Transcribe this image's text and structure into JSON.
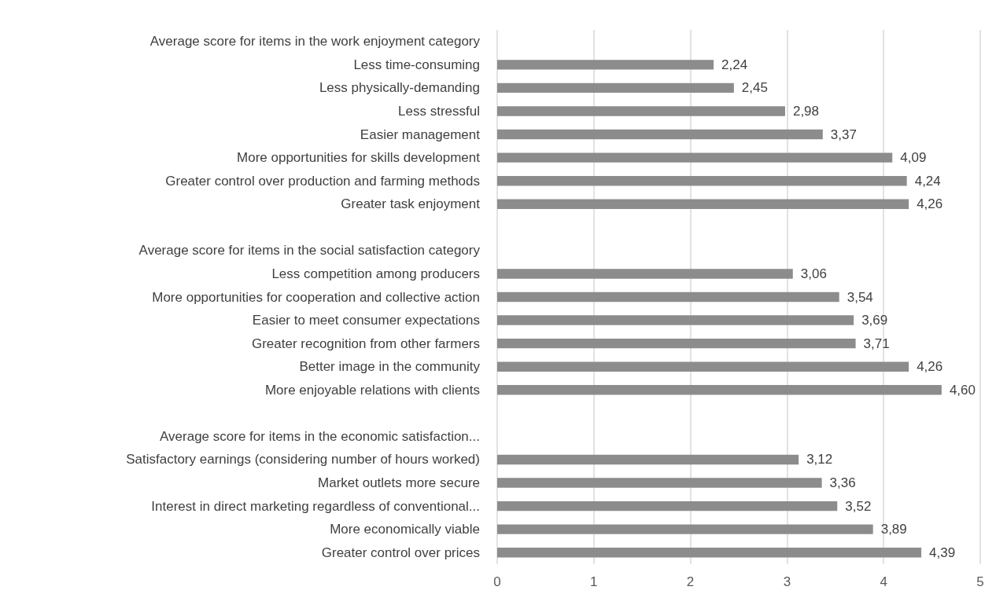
{
  "chart_data": {
    "type": "bar",
    "orientation": "horizontal",
    "categories": [
      "Average score for items in the work enjoyment category",
      "Less time-consuming",
      "Less physically-demanding",
      "Less stressful",
      "Easier management",
      "More opportunities for skills development",
      "Greater control over production and farming methods",
      "Greater task enjoyment",
      null,
      "Average score for items in the social satisfaction category",
      "Less competition among producers",
      "More opportunities for cooperation and collective action",
      "Easier to meet consumer expectations",
      "Greater recognition from other farmers",
      "Better image in the community",
      "More enjoyable relations with clients",
      null,
      "Average score for items in the economic satisfaction...",
      "Satisfactory earnings (considering number of hours worked)",
      "Market outlets more secure",
      "Interest in direct marketing regardless of conventional...",
      "More economically viable",
      "Greater control over prices"
    ],
    "series": [
      {
        "color": "#8c8c8c",
        "values": [
          null,
          2.24,
          2.45,
          2.98,
          3.37,
          4.09,
          4.24,
          4.26,
          null,
          null,
          3.06,
          3.54,
          3.69,
          3.71,
          4.26,
          4.6,
          null,
          null,
          3.12,
          3.36,
          3.52,
          3.89,
          4.39
        ],
        "value_labels": [
          null,
          "2,24",
          "2,45",
          "2,98",
          "3,37",
          "4,09",
          "4,24",
          "4,26",
          null,
          null,
          "3,06",
          "3,54",
          "3,69",
          "3,71",
          "4,26",
          "4,60",
          null,
          null,
          "3,12",
          "3,36",
          "3,52",
          "3,89",
          "4,39"
        ]
      }
    ],
    "xlim": [
      0,
      5
    ],
    "xticks": [
      0,
      1,
      2,
      3,
      4,
      5
    ],
    "grid": "x"
  }
}
